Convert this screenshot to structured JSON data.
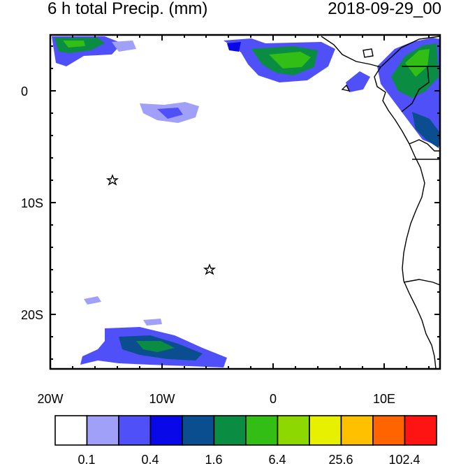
{
  "header": {
    "title": "6 h total Precip. (mm)",
    "datetime": "2018-09-29_00"
  },
  "map": {
    "projection": "cylindrical equidistant",
    "lon_range": [
      -20,
      15
    ],
    "lat_range": [
      -25,
      5
    ],
    "x_tick_labels": [
      "20W",
      "10W",
      "0",
      "10E"
    ],
    "y_tick_labels": [
      "0",
      "10S",
      "20S"
    ],
    "star_markers": [
      {
        "lon": -14.4,
        "lat": -8.0
      },
      {
        "lon": -5.7,
        "lat": -16.0
      }
    ]
  },
  "colorbar": {
    "colors": [
      "#ffffff",
      "#a0a0f8",
      "#5050f8",
      "#0808e8",
      "#0a4e90",
      "#0a8c42",
      "#32be14",
      "#8cd800",
      "#e6f000",
      "#ffc000",
      "#ff6400",
      "#ff1414"
    ],
    "tick_labels": [
      "0.1",
      "0.4",
      "1.6",
      "6.4",
      "25.6",
      "102.4"
    ]
  }
}
